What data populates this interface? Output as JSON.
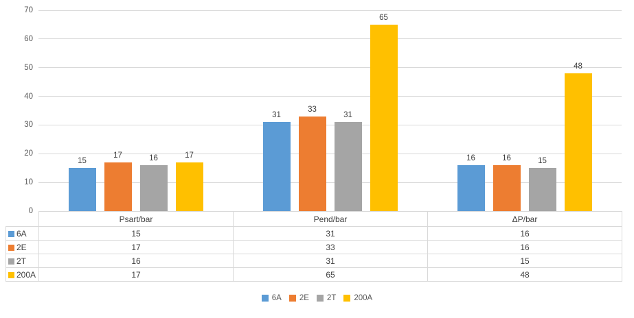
{
  "chart_data": {
    "type": "bar",
    "title": "",
    "xlabel": "",
    "ylabel": "",
    "categories": [
      "Psart/bar",
      "Pend/bar",
      "ΔP/bar"
    ],
    "series": [
      {
        "name": "6A",
        "color": "#5B9BD5",
        "values": [
          15,
          31,
          16
        ]
      },
      {
        "name": "2E",
        "color": "#ED7D31",
        "values": [
          17,
          33,
          16
        ]
      },
      {
        "name": "2T",
        "color": "#A5A5A5",
        "values": [
          16,
          31,
          15
        ]
      },
      {
        "name": "200A",
        "color": "#FFC000",
        "values": [
          17,
          65,
          48
        ]
      }
    ],
    "ylim": [
      0,
      70
    ],
    "ytick_step": 10,
    "yticks": [
      "0",
      "10",
      "20",
      "30",
      "40",
      "50",
      "60",
      "70"
    ],
    "grid": true,
    "data_labels": true,
    "data_table": true,
    "legend_position": "bottom",
    "legend_entries": [
      "6A",
      "2E",
      "2T",
      "200A"
    ]
  },
  "colors": {
    "gridline": "#D9D9D9",
    "table_border": "#D9D9D9",
    "axis_text": "#595959",
    "label_text": "#404040",
    "background": "#FFFFFF"
  }
}
